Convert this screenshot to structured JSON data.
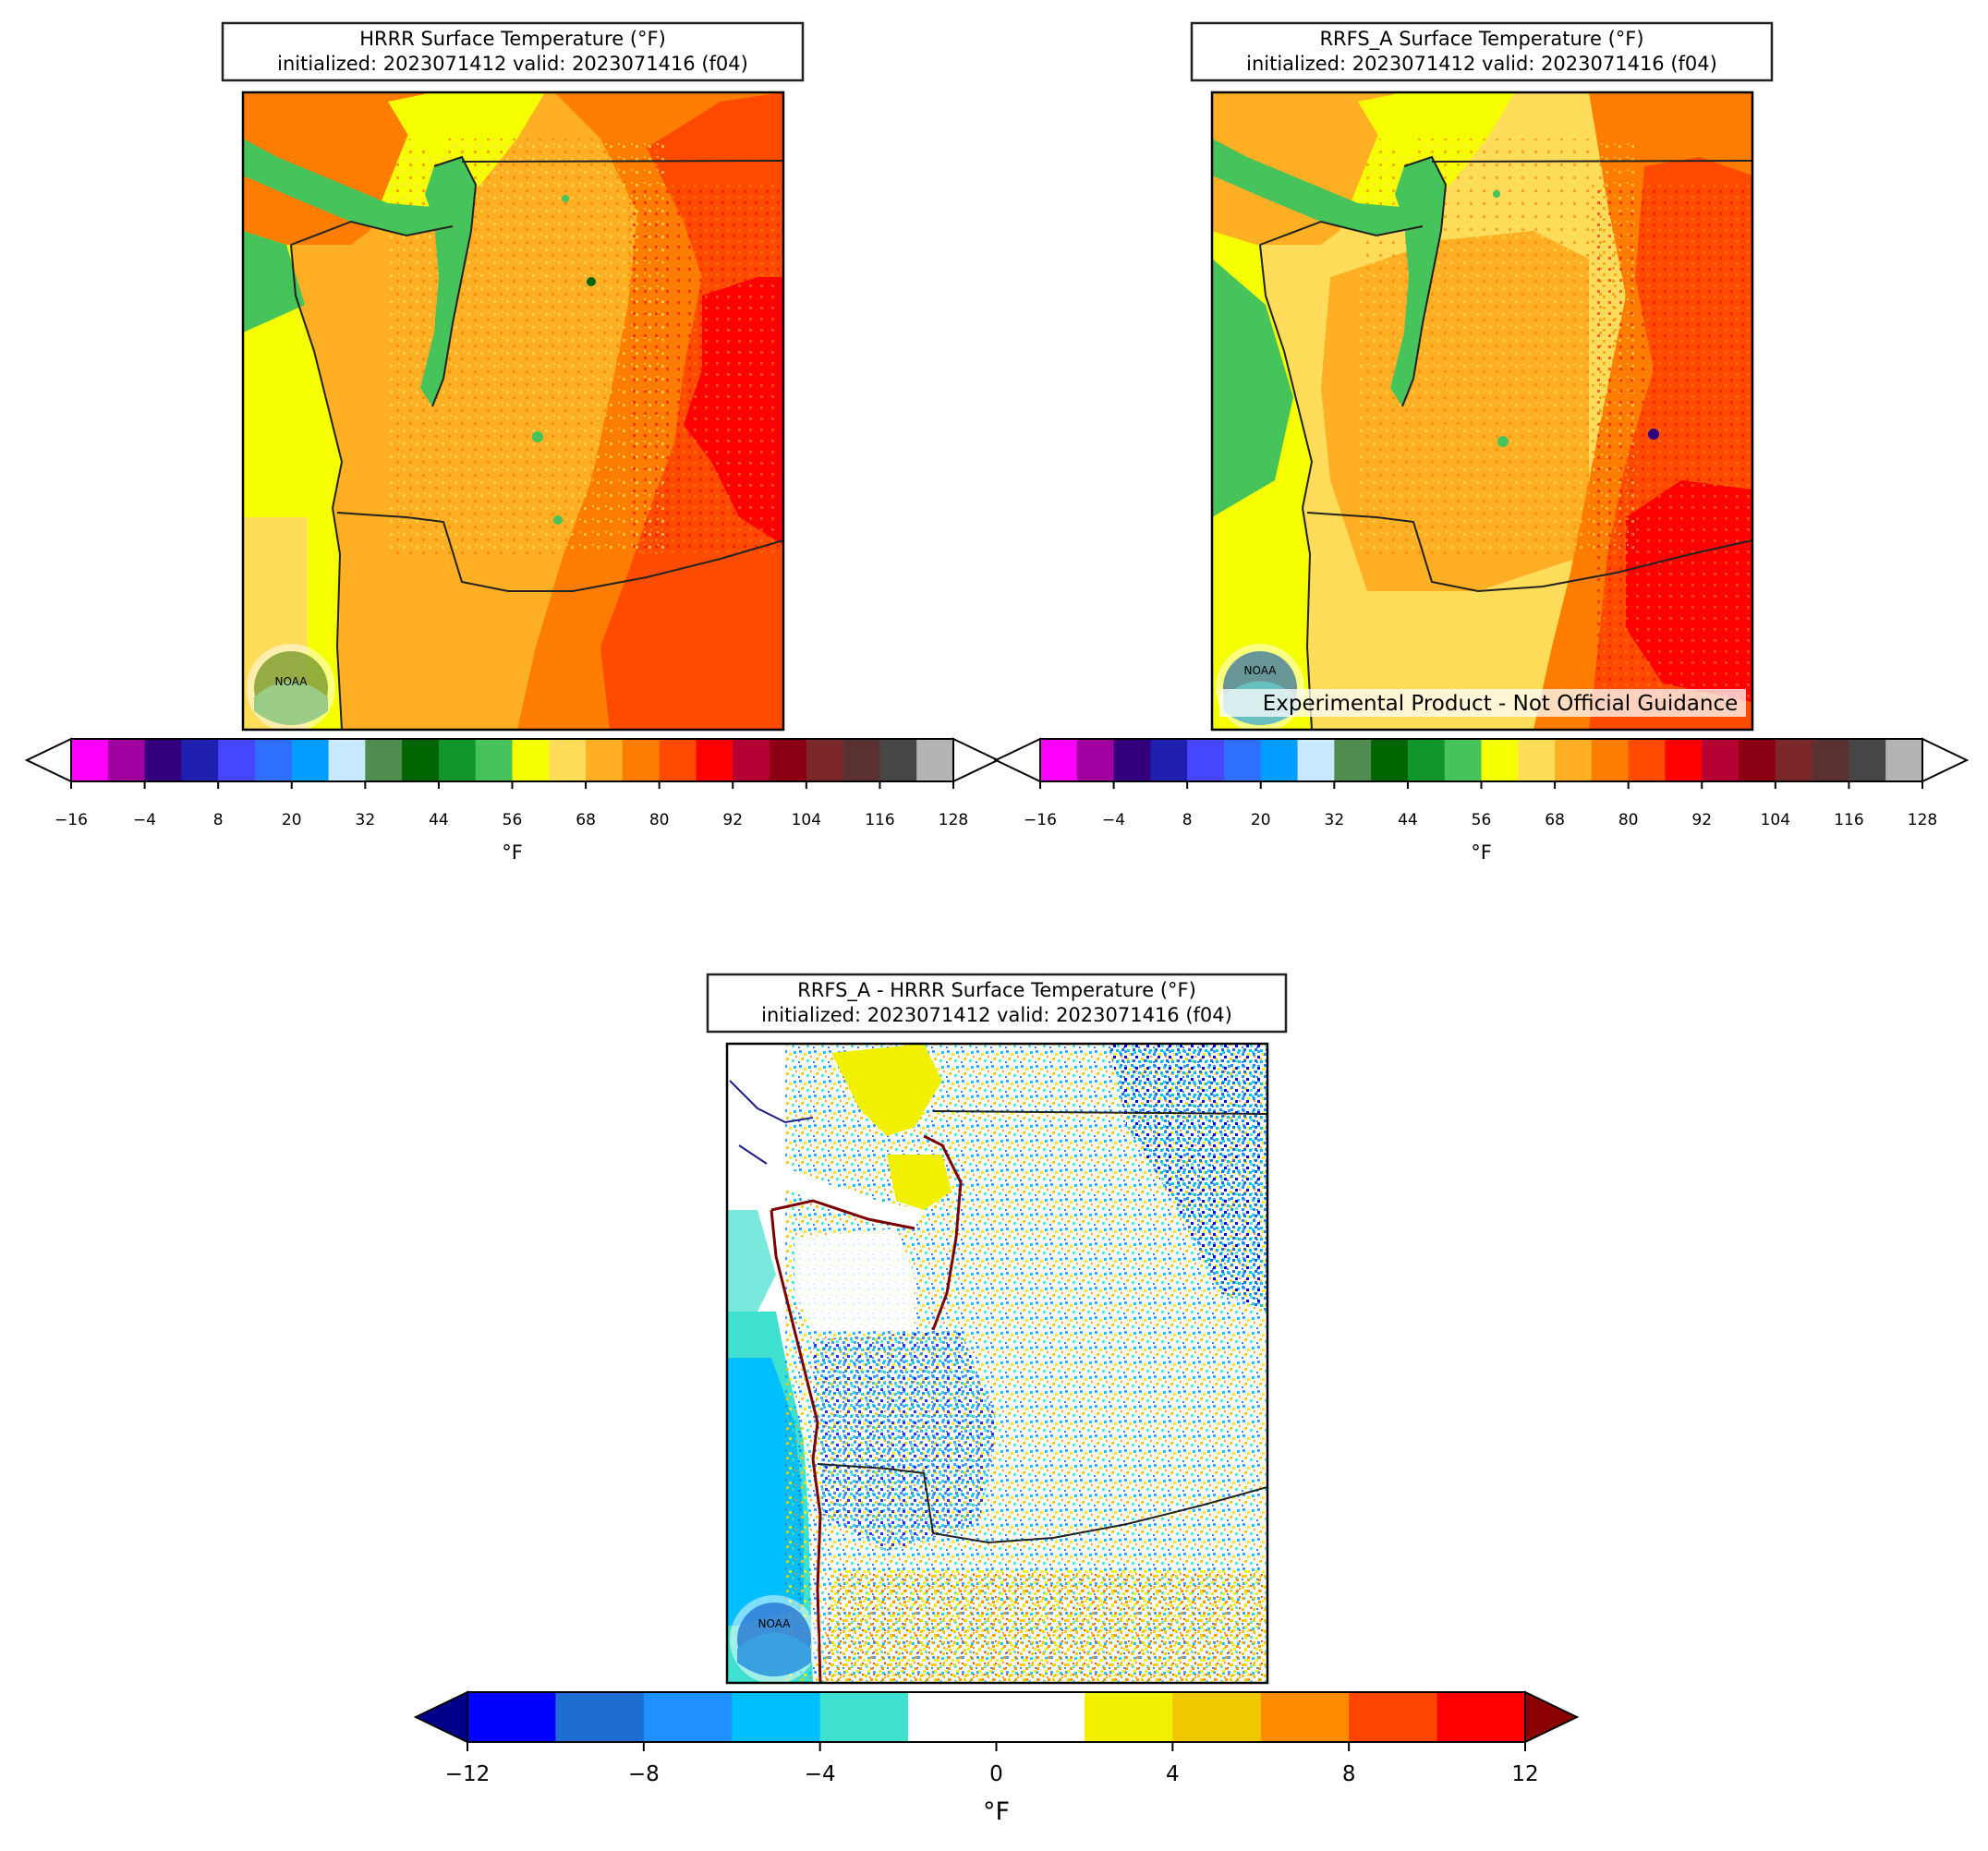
{
  "panels": [
    {
      "id": "hrrr",
      "title_line1": "HRRR Surface Temperature (°F)",
      "title_line2": "initialized: 2023071412 valid: 2023071416 (f04)",
      "logo_text": "NOAA",
      "watermark": "",
      "colorbar": {
        "unit": "°F",
        "ticks": [
          "−16",
          "−4",
          "8",
          "20",
          "32",
          "44",
          "56",
          "68",
          "80",
          "92",
          "104",
          "116",
          "128"
        ],
        "colors": [
          "#ff00ff",
          "#a000a0",
          "#32007d",
          "#2020b0",
          "#4646ff",
          "#2f6fff",
          "#009cff",
          "#c8e8ff",
          "#508c50",
          "#006400",
          "#10962a",
          "#46c35a",
          "#f5ff00",
          "#ffdc5a",
          "#ffaf23",
          "#ff7d00",
          "#ff4b00",
          "#ff0000",
          "#b40032",
          "#8c0014",
          "#7d2828",
          "#5a3232",
          "#464646",
          "#b4b4b4"
        ],
        "extend_min_color": "#ffffff",
        "extend_max_color": "#ffffff"
      }
    },
    {
      "id": "rrfs",
      "title_line1": "RRFS_A Surface Temperature (°F)",
      "title_line2": "initialized: 2023071412 valid: 2023071416 (f04)",
      "logo_text": "NOAA",
      "watermark": "Experimental Product - Not Official Guidance",
      "colorbar": {
        "unit": "°F",
        "ticks": [
          "−16",
          "−4",
          "8",
          "20",
          "32",
          "44",
          "56",
          "68",
          "80",
          "92",
          "104",
          "116",
          "128"
        ],
        "colors": [
          "#ff00ff",
          "#a000a0",
          "#32007d",
          "#2020b0",
          "#4646ff",
          "#2f6fff",
          "#009cff",
          "#c8e8ff",
          "#508c50",
          "#006400",
          "#10962a",
          "#46c35a",
          "#f5ff00",
          "#ffdc5a",
          "#ffaf23",
          "#ff7d00",
          "#ff4b00",
          "#ff0000",
          "#b40032",
          "#8c0014",
          "#7d2828",
          "#5a3232",
          "#464646",
          "#b4b4b4"
        ],
        "extend_min_color": "#ffffff",
        "extend_max_color": "#ffffff"
      }
    },
    {
      "id": "diff",
      "title_line1": "RRFS_A - HRRR Surface Temperature (°F)",
      "title_line2": "initialized: 2023071412 valid: 2023071416 (f04)",
      "logo_text": "NOAA",
      "watermark": "",
      "colorbar": {
        "unit": "°F",
        "ticks": [
          "−12",
          "−8",
          "−4",
          "0",
          "4",
          "8",
          "12"
        ],
        "colors": [
          "#0000ff",
          "#1e6ed2",
          "#1e90ff",
          "#00bfff",
          "#40e0d0",
          "#ffffff",
          "#ffffff",
          "#f0f000",
          "#f0c800",
          "#ff8c00",
          "#ff4500",
          "#ff0000"
        ],
        "extend_min_color": "#00008b",
        "extend_max_color": "#8b0000"
      }
    }
  ],
  "map_colors": {
    "ocean_hrrr": "#f5ff00",
    "ocean_rrfs": "#f5ff00",
    "sound_hrrr": "#46c35a",
    "sound_rrfs": "#46c35a",
    "land_cool": "#ffaf23",
    "land_mid": "#ff7d00",
    "land_hot": "#ff4b00",
    "land_hottest": "#ff0000",
    "coast_line": "#222222"
  }
}
